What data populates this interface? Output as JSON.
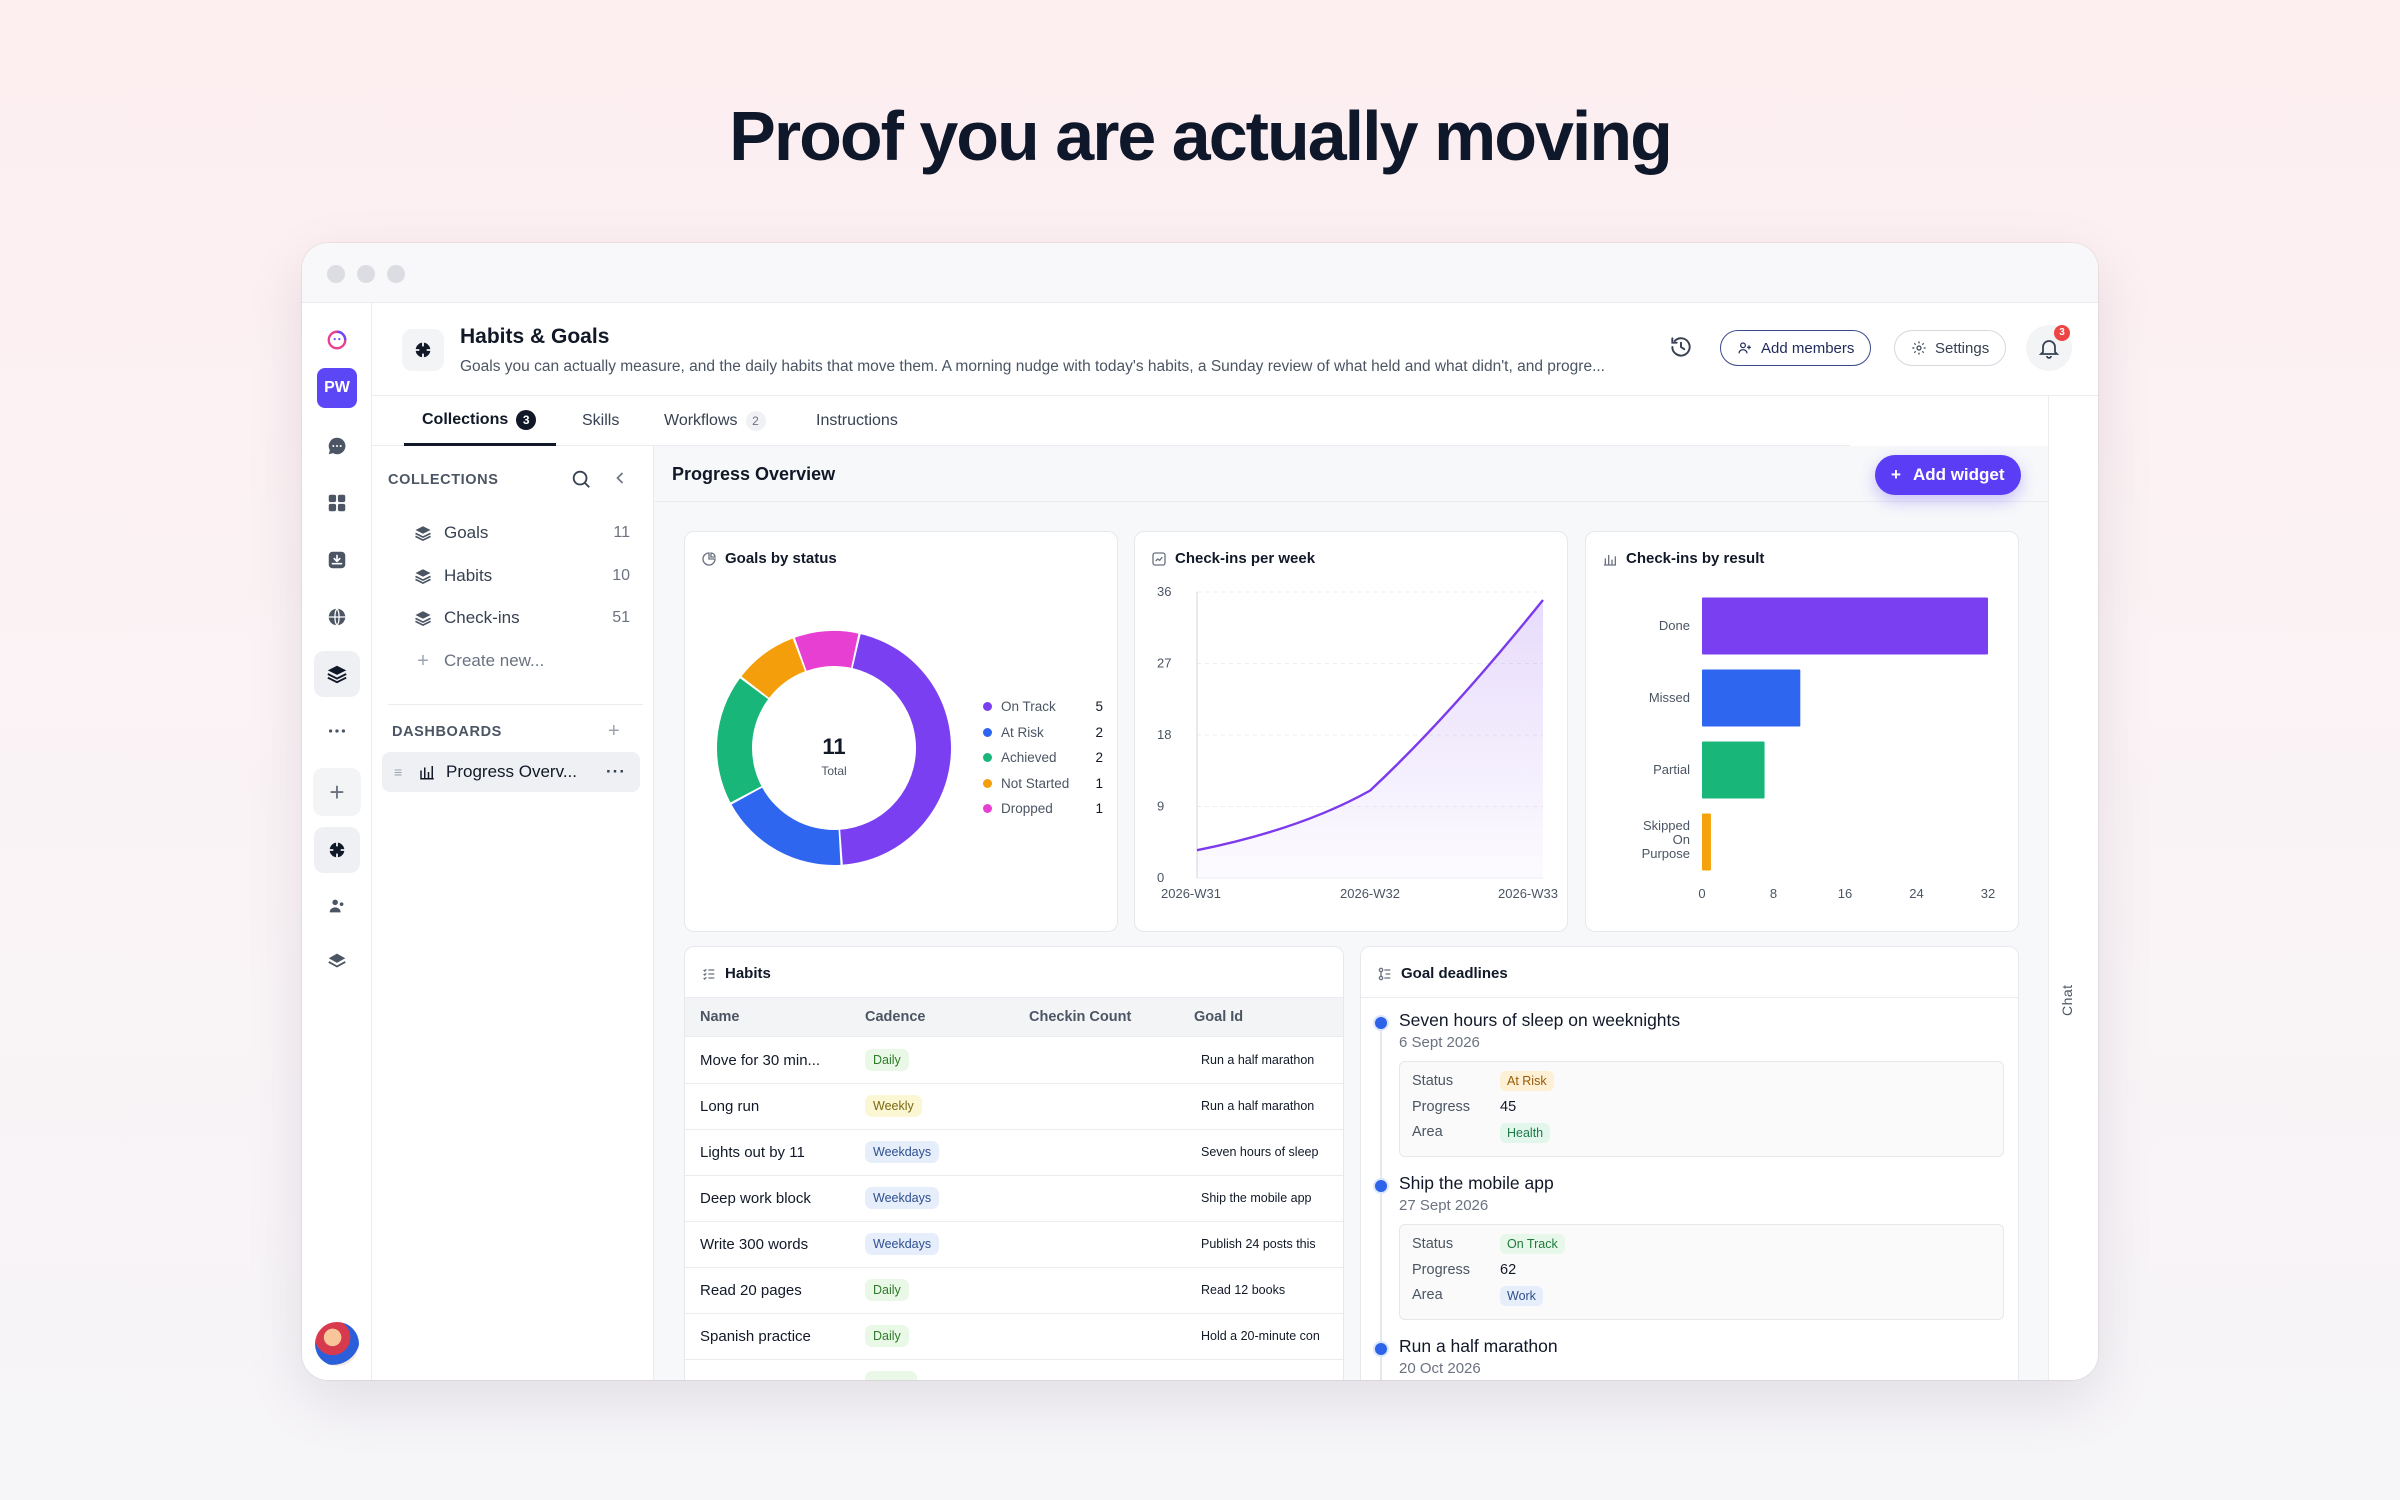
{
  "hero": {
    "title": "Proof you are actually moving"
  },
  "rail": {
    "workspace_initials": "PW"
  },
  "header": {
    "title": "Habits & Goals",
    "description": "Goals you can actually measure, and the daily habits that move them. A morning nudge with today's habits, a Sunday review of what held and what didn't, and progre...",
    "add_members_label": "Add members",
    "settings_label": "Settings",
    "notification_count": "3"
  },
  "tabs": [
    {
      "label": "Collections",
      "count": "3"
    },
    {
      "label": "Skills",
      "count": ""
    },
    {
      "label": "Workflows",
      "count": "2"
    },
    {
      "label": "Instructions",
      "count": ""
    }
  ],
  "chat_label": "Chat",
  "sidebar": {
    "collections_heading": "COLLECTIONS",
    "collections": [
      {
        "label": "Goals",
        "count": "11"
      },
      {
        "label": "Habits",
        "count": "10"
      },
      {
        "label": "Check-ins",
        "count": "51"
      }
    ],
    "create_label": "Create new...",
    "dashboards_heading": "DASHBOARDS",
    "dashboards": [
      {
        "label": "Progress Overv..."
      }
    ]
  },
  "main": {
    "title": "Progress Overview",
    "add_widget_label": "Add widget"
  },
  "widgets": {
    "goals_by_status_title": "Goals by status",
    "checkins_per_week_title": "Check-ins per week",
    "checkins_by_result_title": "Check-ins by result",
    "habits_title": "Habits",
    "goal_deadlines_title": "Goal deadlines"
  },
  "chart_data": [
    {
      "type": "pie",
      "title": "Goals by status",
      "center_value": "11",
      "center_label": "Total",
      "categories": [
        "On Track",
        "At Risk",
        "Achieved",
        "Not Started",
        "Dropped"
      ],
      "values": [
        5,
        2,
        2,
        1,
        1
      ],
      "colors": [
        "#7b3ff2",
        "#2f66f0",
        "#18b779",
        "#f59e0b",
        "#e83fd3"
      ]
    },
    {
      "type": "area",
      "title": "Check-ins per week",
      "x": [
        "2026-W31",
        "2026-W32",
        "2026-W33"
      ],
      "values": [
        3.5,
        11,
        35
      ],
      "yticks": [
        0,
        9,
        18,
        27,
        36
      ],
      "ylim": [
        0,
        36
      ],
      "color": "#7c3aed"
    },
    {
      "type": "bar",
      "orientation": "horizontal",
      "title": "Check-ins by result",
      "categories": [
        "Done",
        "Missed",
        "Partial",
        "Skipped On Purpose"
      ],
      "values": [
        32,
        11,
        7,
        1
      ],
      "xticks": [
        0,
        8,
        16,
        24,
        32
      ],
      "xlim": [
        0,
        32
      ],
      "colors": [
        "#7b3ff2",
        "#2f66f0",
        "#18b779",
        "#f5a30b"
      ]
    }
  ],
  "habits_table": {
    "columns": [
      "Name",
      "Cadence",
      "Checkin Count",
      "Goal Id"
    ],
    "rows": [
      {
        "name": "Move for 30 min...",
        "cadence": "Daily",
        "checkins": "",
        "goal": "Run a half marathon"
      },
      {
        "name": "Long run",
        "cadence": "Weekly",
        "checkins": "",
        "goal": "Run a half marathon"
      },
      {
        "name": "Lights out by 11",
        "cadence": "Weekdays",
        "checkins": "",
        "goal": "Seven hours of sleep"
      },
      {
        "name": "Deep work block",
        "cadence": "Weekdays",
        "checkins": "",
        "goal": "Ship the mobile app"
      },
      {
        "name": "Write 300 words",
        "cadence": "Weekdays",
        "checkins": "",
        "goal": "Publish 24 posts this"
      },
      {
        "name": "Read 20 pages",
        "cadence": "Daily",
        "checkins": "",
        "goal": "Read 12 books"
      },
      {
        "name": "Spanish practice",
        "cadence": "Daily",
        "checkins": "",
        "goal": "Hold a 20-minute con"
      }
    ]
  },
  "goal_deadlines": [
    {
      "title": "Seven hours of sleep on weeknights",
      "date": "6 Sept 2026",
      "status_label": "Status",
      "status": "At Risk",
      "progress_label": "Progress",
      "progress": "45",
      "area_label": "Area",
      "area": "Health"
    },
    {
      "title": "Ship the mobile app",
      "date": "27 Sept 2026",
      "status_label": "Status",
      "status": "On Track",
      "progress_label": "Progress",
      "progress": "62",
      "area_label": "Area",
      "area": "Work"
    },
    {
      "title": "Run a half marathon",
      "date": "20 Oct 2026"
    }
  ]
}
